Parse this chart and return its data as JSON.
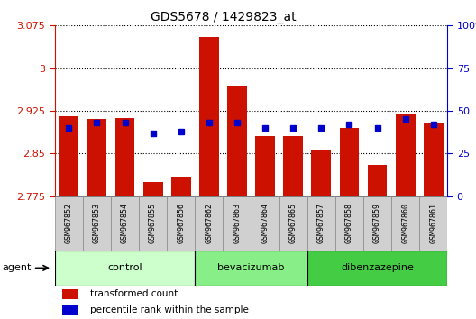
{
  "title": "GDS5678 / 1429823_at",
  "samples": [
    "GSM967852",
    "GSM967853",
    "GSM967854",
    "GSM967855",
    "GSM967856",
    "GSM967862",
    "GSM967863",
    "GSM967864",
    "GSM967865",
    "GSM967857",
    "GSM967858",
    "GSM967859",
    "GSM967860",
    "GSM967861"
  ],
  "red_values": [
    2.915,
    2.91,
    2.913,
    2.8,
    2.81,
    3.055,
    2.97,
    2.88,
    2.88,
    2.855,
    2.895,
    2.83,
    2.92,
    2.905
  ],
  "blue_values": [
    40,
    43,
    43,
    37,
    38,
    43,
    43,
    40,
    40,
    40,
    42,
    40,
    45,
    42
  ],
  "ymin": 2.775,
  "ymax": 3.075,
  "yticks": [
    2.775,
    2.85,
    2.925,
    3.0,
    3.075
  ],
  "ytick_labels": [
    "2.775",
    "2.85",
    "2.925",
    "3",
    "3.075"
  ],
  "right_yticks": [
    0,
    25,
    50,
    75,
    100
  ],
  "right_ytick_labels": [
    "0",
    "25",
    "50",
    "75",
    "100%"
  ],
  "bar_color": "#cc1100",
  "square_color": "#0000cc",
  "group_labels": [
    "control",
    "bevacizumab",
    "dibenzazepine"
  ],
  "group_starts": [
    0,
    5,
    9
  ],
  "group_ends": [
    5,
    9,
    14
  ],
  "group_colors": [
    "#ccffcc",
    "#88ee88",
    "#44cc44"
  ],
  "agent_label": "agent",
  "legend_red": "transformed count",
  "legend_blue": "percentile rank within the sample",
  "tick_color_left": "#cc1100",
  "tick_color_right": "#0000cc",
  "sample_box_color": "#cccccc",
  "sample_box_edge": "#aaaaaa"
}
